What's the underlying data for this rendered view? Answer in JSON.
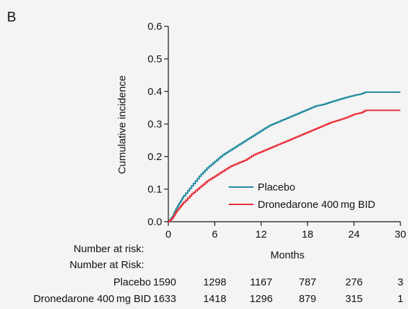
{
  "panel_label": "B",
  "chart_data": {
    "type": "line",
    "step": true,
    "xlabel": "Months",
    "ylabel": "Cumulative incidence",
    "xlim": [
      0,
      30
    ],
    "ylim": [
      0,
      0.6
    ],
    "xticks": [
      0,
      6,
      12,
      18,
      24,
      30
    ],
    "yticks": [
      0.0,
      0.1,
      0.2,
      0.3,
      0.4,
      0.5,
      0.6
    ],
    "ytick_labels": [
      "0.0",
      "0.1",
      "0.2",
      "0.3",
      "0.4",
      "0.5",
      "0.6"
    ],
    "grid": false,
    "legend_position": "bottom-right",
    "series": [
      {
        "name": "Placebo",
        "color": "#1f8a9e",
        "x": [
          0,
          0.5,
          1,
          1.5,
          2,
          3,
          4,
          5,
          6,
          7,
          8,
          9,
          10,
          11,
          12,
          13,
          14,
          15,
          16,
          17,
          18,
          19,
          20,
          21,
          22,
          23,
          24,
          25,
          25.5,
          26,
          30
        ],
        "y": [
          0,
          0.015,
          0.04,
          0.06,
          0.08,
          0.11,
          0.14,
          0.165,
          0.185,
          0.205,
          0.22,
          0.235,
          0.25,
          0.265,
          0.28,
          0.295,
          0.305,
          0.315,
          0.325,
          0.335,
          0.345,
          0.355,
          0.36,
          0.368,
          0.375,
          0.382,
          0.388,
          0.393,
          0.398,
          0.398,
          0.398
        ]
      },
      {
        "name": "Dronedarone 400 mg BID",
        "color": "#e8303a",
        "x": [
          0,
          0.5,
          1,
          1.5,
          2,
          3,
          4,
          5,
          6,
          7,
          8,
          9,
          10,
          11,
          12,
          13,
          14,
          15,
          16,
          17,
          18,
          19,
          20,
          21,
          22,
          23,
          24,
          25,
          25.5,
          26,
          30
        ],
        "y": [
          0,
          0.01,
          0.03,
          0.045,
          0.06,
          0.085,
          0.105,
          0.125,
          0.14,
          0.155,
          0.17,
          0.18,
          0.19,
          0.205,
          0.215,
          0.225,
          0.235,
          0.245,
          0.255,
          0.265,
          0.275,
          0.285,
          0.295,
          0.305,
          0.312,
          0.32,
          0.33,
          0.335,
          0.342,
          0.342,
          0.342
        ]
      }
    ]
  },
  "risk_table": {
    "header_1": "Number at risk:",
    "header_2": "Number at Risk:",
    "rows": [
      {
        "label": "Placebo",
        "values": [
          "1590",
          "1298",
          "1167",
          "787",
          "276",
          "3"
        ]
      },
      {
        "label": "Dronedarone 400 mg BID",
        "values": [
          "1633",
          "1418",
          "1296",
          "879",
          "315",
          "1"
        ]
      }
    ]
  }
}
